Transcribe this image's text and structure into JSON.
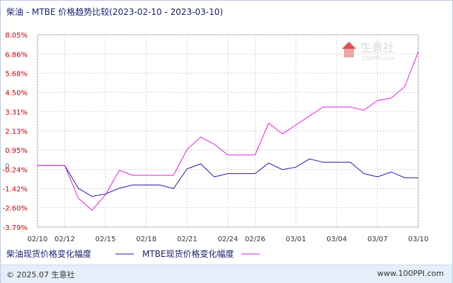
{
  "title": "柴油 - MTBE 价格趋势比较(2023-02-10 - 2023-03-10)",
  "footer": {
    "copyright": "© 2025.07 生意社",
    "site": "www.100PPI.com"
  },
  "watermark": {
    "brand": "生意社",
    "url": "100PPI.com"
  },
  "colors": {
    "diesel": "#1a1aa6",
    "mtbe": "#e020d0",
    "axis_text": "#cc0000",
    "grid": "#d5d5d5"
  },
  "chart_data": {
    "type": "line",
    "x_labels": [
      "02/10",
      "02/12",
      "02/15",
      "02/18",
      "02/21",
      "02/24",
      "02/26",
      "03/01",
      "03/04",
      "03/07",
      "03/10"
    ],
    "y_ticks": [
      "8.05%",
      "6.86%",
      "5.68%",
      "4.50%",
      "3.31%",
      "2.13%",
      "0.95%",
      "-0.24%",
      "-1.42%",
      "-2.60%",
      "-3.79%"
    ],
    "y_tick_values": [
      8.05,
      6.86,
      5.68,
      4.5,
      3.31,
      2.13,
      0.95,
      -0.24,
      -1.42,
      -2.6,
      -3.79
    ],
    "zero_label": "0",
    "ylim": [
      -3.79,
      8.05
    ],
    "x": [
      "02/10",
      "02/11",
      "02/12",
      "02/13",
      "02/14",
      "02/15",
      "02/16",
      "02/17",
      "02/18",
      "02/19",
      "02/20",
      "02/21",
      "02/22",
      "02/23",
      "02/24",
      "02/25",
      "02/26",
      "02/27",
      "02/28",
      "03/01",
      "03/02",
      "03/03",
      "03/04",
      "03/05",
      "03/06",
      "03/07",
      "03/08",
      "03/09",
      "03/10"
    ],
    "series": [
      {
        "name": "柴油现货价格变化幅度",
        "values": [
          0,
          0,
          0,
          -1.4,
          -1.9,
          -1.75,
          -1.4,
          -1.2,
          -1.2,
          -1.2,
          -1.42,
          -0.2,
          0.1,
          -0.7,
          -0.5,
          -0.5,
          -0.5,
          0.15,
          -0.25,
          -0.1,
          0.4,
          0.2,
          0.2,
          0.2,
          -0.5,
          -0.7,
          -0.4,
          -0.75,
          -0.75
        ]
      },
      {
        "name": "MTBE现货价格变化幅度",
        "values": [
          0,
          0,
          0,
          -2.0,
          -2.75,
          -1.8,
          -0.3,
          -0.6,
          -0.6,
          -0.6,
          -0.6,
          1.0,
          1.75,
          1.3,
          0.65,
          0.65,
          0.65,
          2.6,
          1.95,
          2.5,
          3.05,
          3.6,
          3.6,
          3.6,
          3.4,
          4.0,
          4.15,
          4.85,
          7.0
        ]
      }
    ]
  }
}
